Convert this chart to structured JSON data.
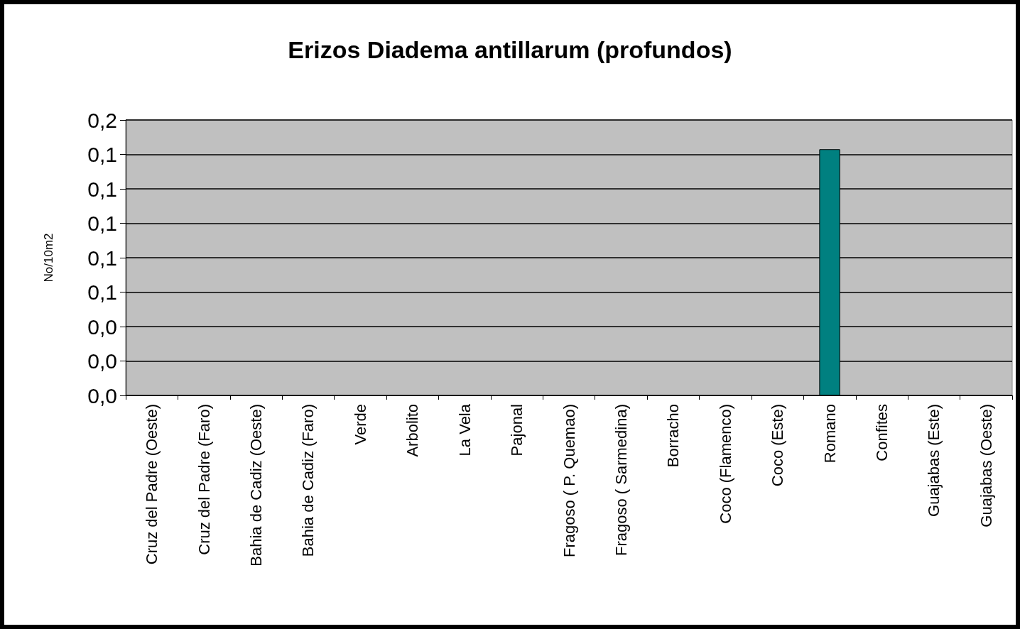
{
  "chart_data": {
    "type": "bar",
    "title": "Erizos Diadema antillarum (profundos)",
    "ylabel": "No/10m2",
    "categories": [
      "Cruz del Padre (Oeste)",
      "Cruz del Padre (Faro)",
      "Bahia de Cadiz (Oeste)",
      "Bahia de Cadiz (Faro)",
      "Verde",
      "Arbolito",
      "La Vela",
      "Pajonal",
      "Fragoso ( P. Quemao)",
      "Fragoso ( Sarmedina)",
      "Borracho",
      "Coco (Flamenco)",
      "Coco (Este)",
      "Romano",
      "Confites",
      "Guajabas (Este)",
      "Guajabas (Oeste)"
    ],
    "values": [
      0,
      0,
      0,
      0,
      0,
      0,
      0,
      0,
      0,
      0,
      0,
      0,
      0,
      0.143,
      0,
      0,
      0
    ],
    "color": "#008080",
    "ylim": [
      0,
      0.16
    ],
    "yticks": [
      {
        "value": 0,
        "label": "0,0"
      },
      {
        "value": 0.02,
        "label": "0,0"
      },
      {
        "value": 0.04,
        "label": "0,0"
      },
      {
        "value": 0.06,
        "label": "0,1"
      },
      {
        "value": 0.08,
        "label": "0,1"
      },
      {
        "value": 0.1,
        "label": "0,1"
      },
      {
        "value": 0.12,
        "label": "0,1"
      },
      {
        "value": 0.14,
        "label": "0,1"
      },
      {
        "value": 0.16,
        "label": "0,2"
      }
    ],
    "grid": "y"
  }
}
